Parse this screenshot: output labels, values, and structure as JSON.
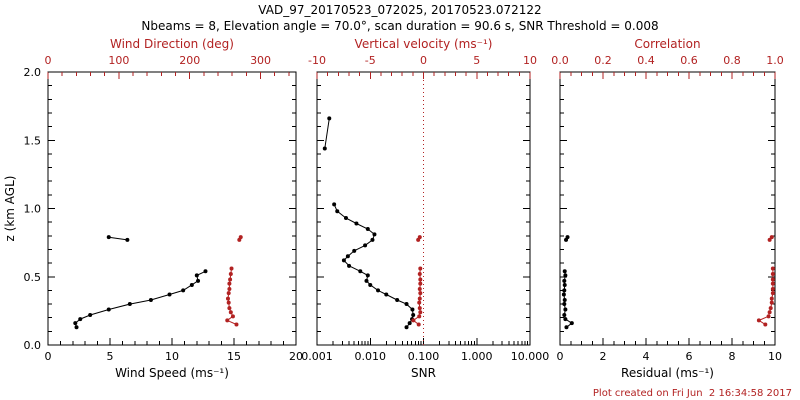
{
  "title": "VAD_97_20170523_072025, 20170523.072122",
  "subtitle": "Nbeams = 8, Elevation angle = 70.0°, scan duration = 90.6 s, SNR Threshold = 0.008",
  "footer": "Plot created on Fri Jun  2 16:34:58 2017",
  "colors": {
    "primary": "#000000",
    "secondary": "#b22222",
    "background": "#ffffff"
  },
  "yaxis": {
    "label": "z (km AGL)",
    "range": [
      0,
      2
    ],
    "ticks": [
      0,
      0.5,
      1,
      1.5,
      2
    ],
    "tick_labels": [
      "0.0",
      "0.5",
      "1.0",
      "1.5",
      "2.0"
    ],
    "minor_step": 0.1
  },
  "chart_data": [
    {
      "type": "line",
      "x_bottom": {
        "label": "Wind Speed (ms⁻¹)",
        "scale": "linear",
        "range": [
          0,
          20
        ],
        "ticks": [
          0,
          5,
          10,
          15,
          20
        ],
        "tick_labels": [
          "0",
          "5",
          "10",
          "15",
          "20"
        ],
        "minor_step": 1
      },
      "x_top": {
        "label": "Wind Direction (deg)",
        "scale": "linear",
        "range": [
          0,
          350
        ],
        "ticks": [
          0,
          100,
          200,
          300
        ],
        "tick_labels": [
          "0",
          "100",
          "200",
          "300"
        ],
        "minor_step": 20,
        "color": "secondary"
      },
      "series": [
        {
          "name": "wind-speed",
          "color": "primary",
          "axis": "bottom",
          "points": [
            [
              2.3,
              0.13
            ],
            [
              2.2,
              0.16
            ],
            [
              2.6,
              0.19
            ],
            [
              3.4,
              0.22
            ],
            [
              4.9,
              0.26
            ],
            [
              6.6,
              0.3
            ],
            [
              8.3,
              0.33
            ],
            [
              9.8,
              0.37
            ],
            [
              10.9,
              0.4
            ],
            [
              11.6,
              0.44
            ],
            [
              12.1,
              0.47
            ],
            [
              12.0,
              0.51
            ],
            [
              12.7,
              0.54
            ]
          ]
        },
        {
          "name": "wind-speed-upper",
          "color": "primary",
          "axis": "bottom",
          "points": [
            [
              4.9,
              0.79
            ],
            [
              6.4,
              0.77
            ]
          ]
        },
        {
          "name": "wind-direction",
          "color": "secondary",
          "axis": "top",
          "points": [
            [
              266,
              0.15
            ],
            [
              253,
              0.18
            ],
            [
              261,
              0.21
            ],
            [
              258,
              0.24
            ],
            [
              256,
              0.27
            ],
            [
              255,
              0.31
            ],
            [
              254,
              0.34
            ],
            [
              255,
              0.38
            ],
            [
              256,
              0.41
            ],
            [
              256,
              0.45
            ],
            [
              257,
              0.48
            ],
            [
              258,
              0.52
            ],
            [
              259,
              0.56
            ]
          ]
        },
        {
          "name": "wind-direction-upper",
          "color": "secondary",
          "axis": "top",
          "points": [
            [
              272,
              0.79
            ],
            [
              270,
              0.77
            ]
          ]
        }
      ]
    },
    {
      "type": "line",
      "x_bottom": {
        "label": "SNR",
        "scale": "log",
        "range": [
          0.001,
          10
        ],
        "ticks": [
          0.001,
          0.01,
          0.1,
          1,
          10
        ],
        "tick_labels": [
          "0.001",
          "0.010",
          "0.100",
          "1.000",
          "10.000"
        ]
      },
      "x_top": {
        "label": "Vertical velocity (ms⁻¹)",
        "scale": "linear",
        "range": [
          -10,
          10
        ],
        "ticks": [
          -10,
          -5,
          0,
          5,
          10
        ],
        "tick_labels": [
          "-10",
          "-5",
          "0",
          "5",
          "10"
        ],
        "minor_step": 1,
        "color": "secondary"
      },
      "vline": {
        "value": 0.1,
        "axis": "bottom",
        "color": "secondary",
        "style": "dotted"
      },
      "series": [
        {
          "name": "snr",
          "color": "primary",
          "axis": "bottom",
          "points": [
            [
              0.048,
              0.13
            ],
            [
              0.055,
              0.16
            ],
            [
              0.061,
              0.19
            ],
            [
              0.064,
              0.22
            ],
            [
              0.062,
              0.26
            ],
            [
              0.048,
              0.3
            ],
            [
              0.032,
              0.33
            ],
            [
              0.02,
              0.37
            ],
            [
              0.014,
              0.4
            ],
            [
              0.01,
              0.44
            ],
            [
              0.0085,
              0.47
            ],
            [
              0.009,
              0.51
            ],
            [
              0.0065,
              0.54
            ],
            [
              0.004,
              0.58
            ],
            [
              0.0032,
              0.62
            ],
            [
              0.0038,
              0.65
            ],
            [
              0.005,
              0.69
            ],
            [
              0.008,
              0.73
            ],
            [
              0.011,
              0.77
            ],
            [
              0.012,
              0.81
            ],
            [
              0.009,
              0.85
            ],
            [
              0.0055,
              0.89
            ],
            [
              0.0035,
              0.93
            ],
            [
              0.0024,
              0.98
            ],
            [
              0.0021,
              1.03
            ]
          ]
        },
        {
          "name": "snr-upper",
          "color": "primary",
          "axis": "bottom",
          "points": [
            [
              0.0014,
              1.44
            ],
            [
              0.0017,
              1.66
            ]
          ]
        },
        {
          "name": "vertical-velocity",
          "color": "secondary",
          "axis": "top",
          "points": [
            [
              -0.45,
              0.15
            ],
            [
              -0.95,
              0.18
            ],
            [
              -0.4,
              0.21
            ],
            [
              -0.3,
              0.24
            ],
            [
              -0.35,
              0.27
            ],
            [
              -0.4,
              0.31
            ],
            [
              -0.35,
              0.34
            ],
            [
              -0.3,
              0.38
            ],
            [
              -0.35,
              0.41
            ],
            [
              -0.3,
              0.45
            ],
            [
              -0.3,
              0.48
            ],
            [
              -0.35,
              0.52
            ],
            [
              -0.3,
              0.56
            ]
          ]
        },
        {
          "name": "vertical-velocity-upper",
          "color": "secondary",
          "axis": "top",
          "points": [
            [
              -0.35,
              0.79
            ],
            [
              -0.5,
              0.77
            ]
          ]
        }
      ]
    },
    {
      "type": "line",
      "x_bottom": {
        "label": "Residual (ms⁻¹)",
        "scale": "linear",
        "range": [
          0,
          10
        ],
        "ticks": [
          0,
          2,
          4,
          6,
          8,
          10
        ],
        "tick_labels": [
          "0",
          "2",
          "4",
          "6",
          "8",
          "10"
        ],
        "minor_step": 0.5
      },
      "x_top": {
        "label": "Correlation",
        "scale": "linear",
        "range": [
          0,
          1
        ],
        "ticks": [
          0,
          0.2,
          0.4,
          0.6,
          0.8,
          1
        ],
        "tick_labels": [
          "0.0",
          "0.2",
          "0.4",
          "0.6",
          "0.8",
          "1.0"
        ],
        "minor_step": 0.05,
        "color": "secondary"
      },
      "series": [
        {
          "name": "residual",
          "color": "primary",
          "axis": "bottom",
          "points": [
            [
              0.3,
              0.13
            ],
            [
              0.55,
              0.16
            ],
            [
              0.25,
              0.19
            ],
            [
              0.2,
              0.22
            ],
            [
              0.25,
              0.26
            ],
            [
              0.2,
              0.3
            ],
            [
              0.22,
              0.33
            ],
            [
              0.18,
              0.37
            ],
            [
              0.2,
              0.4
            ],
            [
              0.22,
              0.44
            ],
            [
              0.2,
              0.47
            ],
            [
              0.25,
              0.51
            ],
            [
              0.22,
              0.54
            ]
          ]
        },
        {
          "name": "residual-upper",
          "color": "primary",
          "axis": "bottom",
          "points": [
            [
              0.35,
              0.79
            ],
            [
              0.28,
              0.77
            ]
          ]
        },
        {
          "name": "correlation",
          "color": "secondary",
          "axis": "top",
          "points": [
            [
              0.955,
              0.15
            ],
            [
              0.925,
              0.18
            ],
            [
              0.97,
              0.21
            ],
            [
              0.975,
              0.24
            ],
            [
              0.98,
              0.27
            ],
            [
              0.985,
              0.31
            ],
            [
              0.985,
              0.34
            ],
            [
              0.99,
              0.38
            ],
            [
              0.99,
              0.41
            ],
            [
              0.99,
              0.45
            ],
            [
              0.99,
              0.48
            ],
            [
              0.99,
              0.52
            ],
            [
              0.99,
              0.56
            ]
          ]
        },
        {
          "name": "correlation-upper",
          "color": "secondary",
          "axis": "top",
          "points": [
            [
              0.985,
              0.79
            ],
            [
              0.975,
              0.77
            ]
          ]
        }
      ]
    }
  ]
}
